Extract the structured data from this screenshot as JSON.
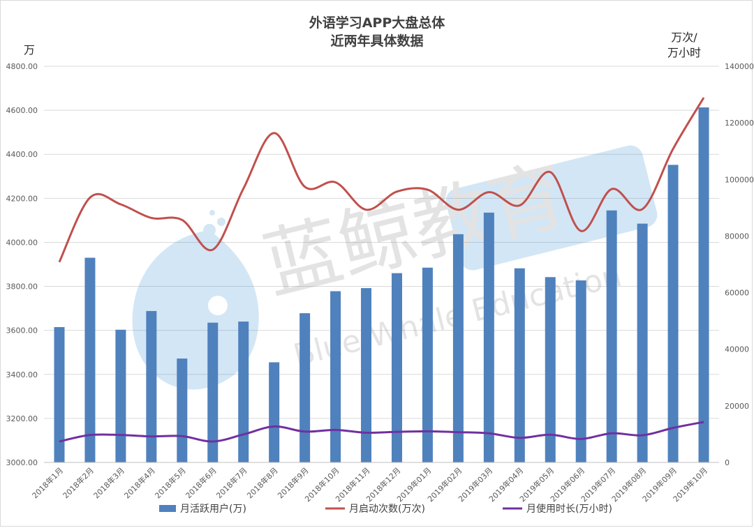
{
  "chart_data": {
    "type": "bar",
    "title_lines": [
      "外语学习APP大盘总体",
      "近两年具体数据"
    ],
    "ylabel_left": "万",
    "ylabel_right_lines": [
      "万次/",
      "万小时"
    ],
    "categories": [
      "2018年1月",
      "2018年2月",
      "2018年3月",
      "2018年4月",
      "2018年5月",
      "2018年6月",
      "2018年7月",
      "2018年8月",
      "2018年9月",
      "2018年10月",
      "2018年11月",
      "2018年12月",
      "2019年01月",
      "2019年02月",
      "2019年03月",
      "2019年04月",
      "2019年05月",
      "2019年06月",
      "2019年07月",
      "2019年08月",
      "2019年09月",
      "2019年10月"
    ],
    "ylim_left": [
      3000,
      4800
    ],
    "yticks_left": [
      "3000.00",
      "3200.00",
      "3400.00",
      "3600.00",
      "3800.00",
      "4000.00",
      "4200.00",
      "4400.00",
      "4600.00",
      "4800.00"
    ],
    "ylim_right": [
      0,
      140000
    ],
    "yticks_right": [
      "0",
      "20000",
      "40000",
      "60000",
      "80000",
      "100000",
      "120000",
      "140000"
    ],
    "grid": true,
    "legend_position": "bottom",
    "series": [
      {
        "name": "月活跃用户(万)",
        "kind": "bar",
        "axis": "left",
        "color": "#4f81bd",
        "values": [
          3615,
          3930,
          3603,
          3688,
          3472,
          3635,
          3640,
          3455,
          3678,
          3778,
          3792,
          3860,
          3885,
          4037,
          4135,
          3882,
          3842,
          3827,
          4145,
          4085,
          4352,
          4613
        ]
      },
      {
        "name": "月启动次数(万次)",
        "kind": "line",
        "axis": "right",
        "color": "#c0504d",
        "values": [
          70800,
          93600,
          91200,
          86400,
          85700,
          75200,
          96800,
          116400,
          97400,
          99000,
          89300,
          95700,
          96400,
          89300,
          95500,
          90800,
          102600,
          81800,
          96600,
          89500,
          110800,
          128900
        ]
      },
      {
        "name": "月使用时长(万小时)",
        "kind": "line",
        "axis": "right",
        "color": "#7030a0",
        "values": [
          7400,
          9700,
          9700,
          9200,
          9300,
          7400,
          9900,
          12700,
          10900,
          11500,
          10500,
          10800,
          11000,
          10700,
          10300,
          8700,
          9800,
          8300,
          10300,
          9600,
          12200,
          14300
        ]
      }
    ]
  },
  "watermark": {
    "chinese": "蓝鲸教育",
    "english": "Blue Whale Education"
  }
}
